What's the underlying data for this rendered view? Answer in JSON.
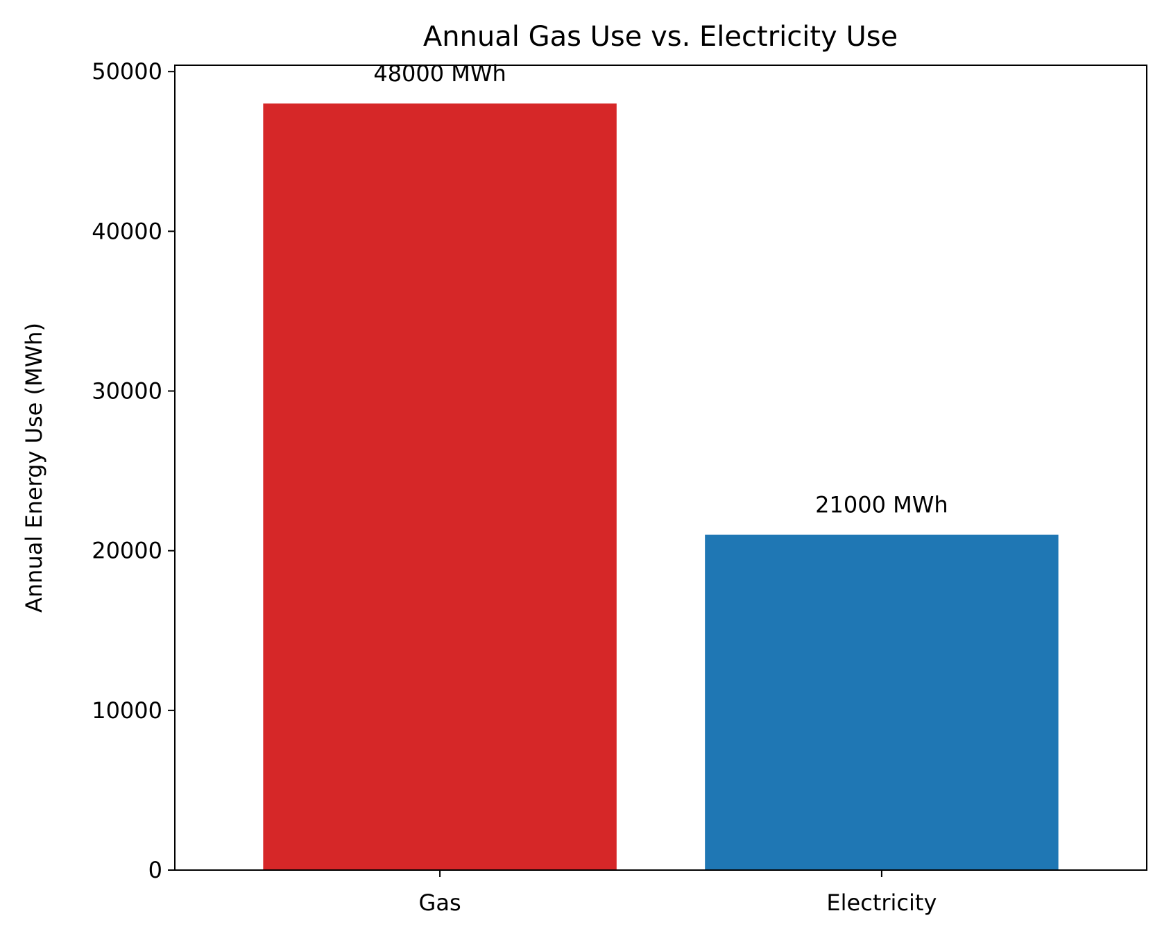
{
  "chart_data": {
    "type": "bar",
    "title": "Annual Gas Use vs. Electricity Use",
    "xlabel": "",
    "ylabel": "Annual Energy Use (MWh)",
    "categories": [
      "Gas",
      "Electricity"
    ],
    "values": [
      48000,
      21000
    ],
    "data_labels": [
      "48000 MWh",
      "21000 MWh"
    ],
    "colors": [
      "#d62728",
      "#1f77b4"
    ],
    "ylim": [
      0,
      50400
    ],
    "yticks": [
      0,
      10000,
      20000,
      30000,
      40000,
      50000
    ],
    "ytick_labels": [
      "0",
      "10000",
      "20000",
      "30000",
      "40000",
      "50000"
    ],
    "grid": false,
    "legend": "none"
  }
}
